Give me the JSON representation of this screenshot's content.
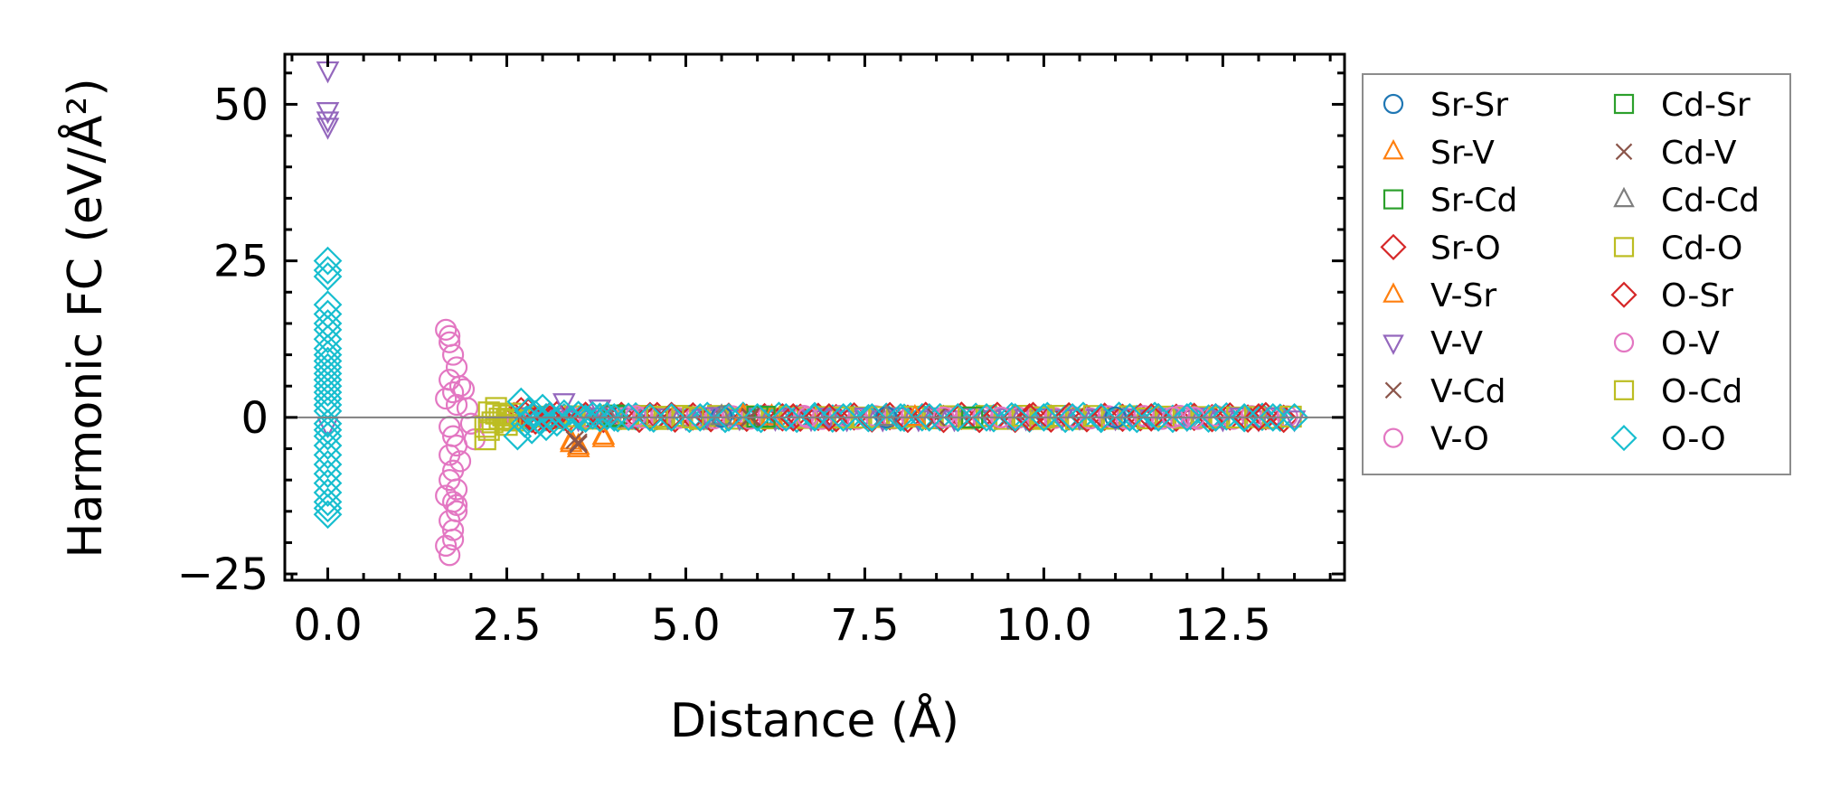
{
  "chart_data": {
    "type": "scatter",
    "title": "",
    "xlabel": "Distance (Å)",
    "ylabel": "Harmonic FC (eV/Å²)",
    "xlim": [
      -0.6,
      14.2
    ],
    "ylim": [
      -26,
      58
    ],
    "xticks": [
      0.0,
      2.5,
      5.0,
      7.5,
      10.0,
      12.5
    ],
    "xtick_labels": [
      "0.0",
      "2.5",
      "5.0",
      "7.5",
      "10.0",
      "12.5"
    ],
    "yticks": [
      -25,
      0,
      25,
      50
    ],
    "ytick_labels": [
      "−25",
      "0",
      "25",
      "50"
    ],
    "zero_line": 0,
    "grid": false,
    "legend_position": "outside-right",
    "series": [
      {
        "name": "Sr-Sr",
        "marker": "circle",
        "color": "#1f77b4",
        "points": [
          [
            3.9,
            0.2
          ],
          [
            5.5,
            0.1
          ],
          [
            7.8,
            0.0
          ],
          [
            11.0,
            0.0
          ]
        ]
      },
      {
        "name": "Sr-V",
        "marker": "triangle-up",
        "color": "#ff7f0e",
        "points": [
          [
            3.4,
            -4.2
          ],
          [
            3.5,
            -5.0
          ],
          [
            3.85,
            -3.4
          ],
          [
            5.8,
            0.2
          ],
          [
            8.2,
            0.0
          ]
        ]
      },
      {
        "name": "Sr-Cd",
        "marker": "square",
        "color": "#2ca02c",
        "points": [
          [
            4.0,
            0.3
          ],
          [
            6.0,
            0.1
          ],
          [
            9.0,
            0.0
          ]
        ]
      },
      {
        "name": "Sr-O",
        "marker": "diamond",
        "color": "#d62728",
        "points": [
          [
            2.7,
            1.0
          ],
          [
            2.9,
            -0.5
          ],
          [
            3.2,
            0.4
          ],
          [
            4.5,
            0.2
          ],
          [
            6.5,
            0.0
          ],
          [
            8.8,
            0.0
          ],
          [
            11.5,
            0.0
          ],
          [
            13.0,
            0.0
          ]
        ]
      },
      {
        "name": "V-Sr",
        "marker": "triangle-up",
        "color": "#ff7f0e",
        "points": [
          [
            3.4,
            -3.8
          ],
          [
            3.5,
            -4.6
          ],
          [
            3.85,
            -3.0
          ],
          [
            6.2,
            0.1
          ]
        ]
      },
      {
        "name": "V-V",
        "marker": "triangle-down",
        "color": "#9467bd",
        "points": [
          [
            0.0,
            55.5
          ],
          [
            0.0,
            49.0
          ],
          [
            0.0,
            47.5
          ],
          [
            0.0,
            46.5
          ],
          [
            0.0,
            -1.2
          ],
          [
            3.3,
            2.5
          ],
          [
            3.8,
            1.5
          ],
          [
            5.3,
            0.3
          ],
          [
            7.0,
            0.0
          ]
        ]
      },
      {
        "name": "V-Cd",
        "marker": "x",
        "color": "#8c564b",
        "points": [
          [
            3.5,
            -4.3
          ],
          [
            3.45,
            -3.6
          ],
          [
            5.9,
            0.1
          ],
          [
            8.5,
            0.0
          ]
        ]
      },
      {
        "name": "V-O",
        "marker": "circle",
        "color": "#e377c2",
        "points": [
          [
            1.65,
            14.0
          ],
          [
            1.7,
            13.0
          ],
          [
            1.75,
            10.0
          ],
          [
            1.8,
            8.0
          ],
          [
            1.7,
            6.0
          ],
          [
            1.85,
            5.0
          ],
          [
            1.75,
            4.0
          ],
          [
            1.65,
            3.0
          ],
          [
            1.8,
            2.0
          ],
          [
            1.7,
            -1.5
          ],
          [
            1.75,
            -3.0
          ],
          [
            1.8,
            -4.5
          ],
          [
            1.7,
            -6.0
          ],
          [
            1.85,
            -7.0
          ],
          [
            1.75,
            -8.5
          ],
          [
            1.7,
            -10.0
          ],
          [
            1.8,
            -11.5
          ],
          [
            1.65,
            -12.5
          ],
          [
            1.75,
            -13.5
          ],
          [
            1.8,
            -15.0
          ],
          [
            1.7,
            -16.5
          ],
          [
            1.75,
            -18.0
          ],
          [
            1.65,
            -20.5
          ],
          [
            1.7,
            -22.0
          ],
          [
            1.9,
            4.5
          ],
          [
            1.95,
            1.5
          ],
          [
            2.0,
            -1.0
          ],
          [
            2.05,
            -3.5
          ],
          [
            4.2,
            0.3
          ],
          [
            6.7,
            0.0
          ],
          [
            9.4,
            0.0
          ],
          [
            11.8,
            0.0
          ],
          [
            12.1,
            0.0
          ]
        ]
      },
      {
        "name": "Cd-Sr",
        "marker": "square",
        "color": "#2ca02c",
        "points": [
          [
            4.0,
            0.2
          ],
          [
            6.1,
            0.1
          ]
        ]
      },
      {
        "name": "Cd-V",
        "marker": "x",
        "color": "#8c564b",
        "points": [
          [
            3.5,
            -4.0
          ],
          [
            5.9,
            0.0
          ]
        ]
      },
      {
        "name": "Cd-Cd",
        "marker": "triangle-up",
        "color": "#7f7f7f",
        "points": [
          [
            3.9,
            0.5
          ],
          [
            5.5,
            0.1
          ],
          [
            7.8,
            0.0
          ]
        ]
      },
      {
        "name": "Cd-O",
        "marker": "square",
        "color": "#bcbd22",
        "points": [
          [
            2.2,
            -3.5
          ],
          [
            2.2,
            -1.5
          ],
          [
            2.25,
            0.8
          ],
          [
            2.3,
            -0.8
          ],
          [
            2.35,
            1.5
          ],
          [
            2.4,
            -0.2
          ],
          [
            2.45,
            0.3
          ],
          [
            2.5,
            -1.2
          ],
          [
            2.55,
            0.6
          ],
          [
            2.6,
            -0.5
          ],
          [
            4.6,
            0.1
          ],
          [
            7.2,
            0.0
          ],
          [
            10.0,
            0.0
          ]
        ]
      },
      {
        "name": "O-Sr",
        "marker": "diamond",
        "color": "#d62728",
        "points": [
          [
            2.8,
            0.8
          ],
          [
            3.1,
            -0.3
          ],
          [
            4.8,
            0.2
          ],
          [
            7.0,
            0.0
          ],
          [
            9.8,
            0.0
          ],
          [
            12.4,
            0.0
          ]
        ]
      },
      {
        "name": "O-V",
        "marker": "circle",
        "color": "#e377c2",
        "points": [
          [
            1.7,
            12.0
          ],
          [
            1.8,
            -14.0
          ],
          [
            1.75,
            -19.5
          ],
          [
            4.3,
            0.2
          ],
          [
            8.6,
            0.0
          ],
          [
            12.0,
            0.0
          ]
        ]
      },
      {
        "name": "O-Cd",
        "marker": "square",
        "color": "#bcbd22",
        "points": [
          [
            2.25,
            -2.0
          ],
          [
            2.35,
            0.6
          ],
          [
            2.5,
            -0.4
          ],
          [
            5.1,
            0.0
          ]
        ]
      },
      {
        "name": "O-O",
        "marker": "diamond",
        "color": "#17becf",
        "points": [
          [
            0.0,
            25.0
          ],
          [
            0.0,
            23.5
          ],
          [
            0.0,
            22.5
          ],
          [
            0.0,
            18.0
          ],
          [
            0.0,
            16.5
          ],
          [
            0.0,
            15.0
          ],
          [
            0.0,
            14.0
          ],
          [
            0.0,
            12.5
          ],
          [
            0.0,
            11.0
          ],
          [
            0.0,
            10.0
          ],
          [
            0.0,
            9.0
          ],
          [
            0.0,
            8.0
          ],
          [
            0.0,
            7.0
          ],
          [
            0.0,
            6.0
          ],
          [
            0.0,
            5.0
          ],
          [
            0.0,
            4.0
          ],
          [
            0.0,
            3.0
          ],
          [
            0.0,
            2.0
          ],
          [
            0.0,
            1.0
          ],
          [
            0.0,
            -1.0
          ],
          [
            0.0,
            -2.0
          ],
          [
            0.0,
            -3.0
          ],
          [
            0.0,
            -4.5
          ],
          [
            0.0,
            -6.0
          ],
          [
            0.0,
            -7.5
          ],
          [
            0.0,
            -9.0
          ],
          [
            0.0,
            -10.5
          ],
          [
            0.0,
            -12.0
          ],
          [
            0.0,
            -13.5
          ],
          [
            0.0,
            -14.5
          ],
          [
            0.0,
            -15.5
          ],
          [
            2.65,
            -3.0
          ],
          [
            2.7,
            2.5
          ],
          [
            2.75,
            -1.0
          ],
          [
            2.8,
            1.0
          ],
          [
            2.85,
            -2.0
          ],
          [
            2.9,
            0.5
          ],
          [
            2.95,
            -0.5
          ],
          [
            3.0,
            1.5
          ],
          [
            3.05,
            -1.5
          ],
          [
            3.1,
            0.2
          ],
          [
            3.2,
            -0.8
          ],
          [
            3.3,
            0.6
          ],
          [
            3.4,
            -0.3
          ],
          [
            3.5,
            0.4
          ],
          [
            3.6,
            -0.2
          ],
          [
            3.7,
            0.3
          ],
          [
            3.8,
            -0.1
          ],
          [
            3.9,
            0.2
          ],
          [
            4.0,
            0.0
          ],
          [
            4.2,
            0.1
          ],
          [
            4.5,
            0.0
          ],
          [
            4.8,
            0.0
          ],
          [
            5.2,
            0.0
          ],
          [
            5.6,
            0.0
          ],
          [
            6.0,
            0.0
          ],
          [
            6.4,
            0.0
          ],
          [
            6.8,
            0.0
          ],
          [
            7.2,
            0.0
          ],
          [
            7.6,
            0.0
          ],
          [
            8.0,
            0.0
          ],
          [
            8.4,
            0.0
          ],
          [
            8.8,
            0.0
          ],
          [
            9.2,
            0.0
          ],
          [
            9.6,
            0.0
          ],
          [
            10.0,
            0.0
          ],
          [
            10.4,
            0.0
          ],
          [
            10.8,
            0.0
          ],
          [
            11.2,
            0.0
          ],
          [
            11.6,
            0.0
          ],
          [
            12.0,
            0.0
          ],
          [
            12.4,
            0.0
          ],
          [
            12.8,
            0.0
          ],
          [
            13.2,
            0.0
          ],
          [
            13.5,
            0.0
          ]
        ]
      }
    ],
    "dense_band": {
      "x_start": 2.6,
      "x_end": 13.5,
      "step": 0.05,
      "y": 0.0
    },
    "dense_band_series": [
      "Sr-O",
      "O-V",
      "Cd-O",
      "V-V",
      "O-O"
    ]
  }
}
